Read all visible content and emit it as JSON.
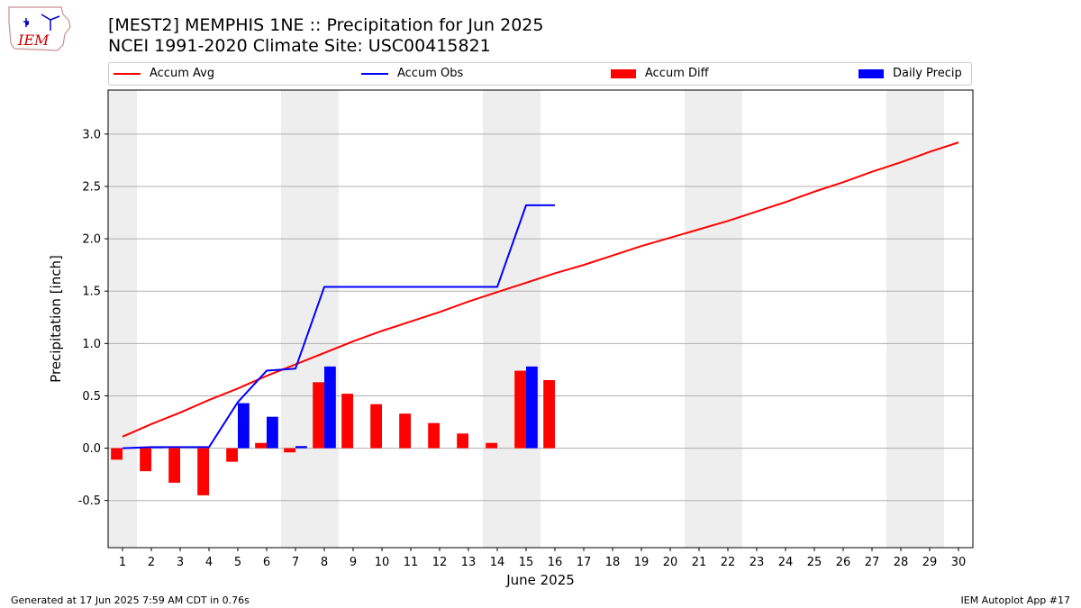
{
  "header": {
    "title_line1": "[MEST2] MEMPHIS 1NE :: Precipitation for Jun 2025",
    "title_line2": "NCEI 1991-2020 Climate Site: USC00415821",
    "logo_text": "IEM"
  },
  "legend": [
    {
      "label": "Accum Avg",
      "kind": "line",
      "color": "#ff0000"
    },
    {
      "label": "Accum Obs",
      "kind": "line",
      "color": "#0000ff"
    },
    {
      "label": "Accum Diff",
      "kind": "bar",
      "color": "#ff0000"
    },
    {
      "label": "Daily Precip",
      "kind": "bar",
      "color": "#0000ff"
    }
  ],
  "footer": {
    "left": "Generated at 17 Jun 2025 7:59 AM CDT in 0.76s",
    "right": "IEM Autoplot App #17"
  },
  "chart_data": {
    "type": "bar",
    "title": "[MEST2] MEMPHIS 1NE :: Precipitation for Jun 2025",
    "xlabel": "June 2025",
    "ylabel": "Precipitation [inch]",
    "xlim": [
      0.5,
      30.5
    ],
    "ylim": [
      -0.95,
      3.42
    ],
    "yticks": [
      "-0.5",
      "0.0",
      "0.5",
      "1.0",
      "1.5",
      "2.0",
      "2.5",
      "3.0"
    ],
    "ytick_values": [
      -0.5,
      0.0,
      0.5,
      1.0,
      1.5,
      2.0,
      2.5,
      3.0
    ],
    "grid": "horizontal",
    "days": [
      1,
      2,
      3,
      4,
      5,
      6,
      7,
      8,
      9,
      10,
      11,
      12,
      13,
      14,
      15,
      16,
      17,
      18,
      19,
      20,
      21,
      22,
      23,
      24,
      25,
      26,
      27,
      28,
      29,
      30
    ],
    "weekend_days": [
      1,
      7,
      8,
      14,
      15,
      21,
      22,
      28,
      29
    ],
    "colors": {
      "avg": "#ff0000",
      "obs": "#0000ff",
      "diff": "#ff0000",
      "daily": "#0000ff",
      "weekend": "#eeeeee",
      "grid": "#b0b0b0"
    },
    "series": [
      {
        "name": "Accum Avg",
        "kind": "line",
        "values": [
          0.11,
          0.23,
          0.34,
          0.46,
          0.57,
          0.69,
          0.8,
          0.91,
          1.02,
          1.12,
          1.21,
          1.3,
          1.4,
          1.49,
          1.58,
          1.67,
          1.75,
          1.84,
          1.93,
          2.01,
          2.09,
          2.17,
          2.26,
          2.35,
          2.45,
          2.54,
          2.64,
          2.73,
          2.83,
          2.92
        ]
      },
      {
        "name": "Accum Obs",
        "kind": "line",
        "values": [
          0.0,
          0.01,
          0.01,
          0.01,
          0.44,
          0.74,
          0.76,
          1.54,
          1.54,
          1.54,
          1.54,
          1.54,
          1.54,
          1.54,
          2.32,
          2.32
        ]
      },
      {
        "name": "Accum Diff",
        "kind": "bar",
        "values": [
          -0.11,
          -0.22,
          -0.33,
          -0.45,
          -0.13,
          0.05,
          -0.04,
          0.63,
          0.52,
          0.42,
          0.33,
          0.24,
          0.14,
          0.05,
          0.74,
          0.65
        ]
      },
      {
        "name": "Daily Precip",
        "kind": "bar",
        "values": [
          0.0,
          0.01,
          0.0,
          0.0,
          0.43,
          0.3,
          0.02,
          0.78,
          0.0,
          0.0,
          0.0,
          0.0,
          0.0,
          0.0,
          0.78,
          0.0
        ]
      }
    ]
  }
}
